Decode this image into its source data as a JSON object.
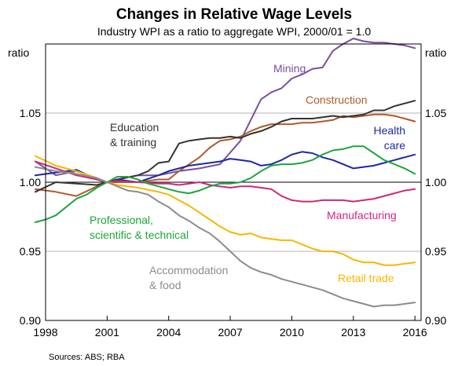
{
  "chart_data": {
    "type": "line",
    "title": "Changes in Relative Wage Levels",
    "subtitle": "Industry WPI as a ratio to aggregate WPI, 2000/01 = 1.0",
    "left_unit": "ratio",
    "right_unit": "ratio",
    "source": "Sources:   ABS; RBA",
    "grid": "horizontal",
    "xlim": [
      1998,
      2016.3
    ],
    "ylim": [
      0.9,
      1.1
    ],
    "x_ticks": [
      "1998",
      "2001",
      "2004",
      "2007",
      "2010",
      "2013",
      "2016"
    ],
    "x_tick_values": [
      1998,
      2001,
      2004,
      2007,
      2010,
      2013,
      2016
    ],
    "y_ticks": [
      "0.90",
      "0.95",
      "1.00",
      "1.05"
    ],
    "y_tick_values": [
      0.9,
      0.95,
      1.0,
      1.05
    ],
    "series": [
      {
        "name": "Mining",
        "color": "#7b4f9d",
        "x": [
          1997.5,
          1998.5,
          1999.5,
          2000.5,
          2001,
          2001.5,
          2002.5,
          2003.5,
          2004.5,
          2005.5,
          2006.5,
          2007.5,
          2008,
          2008.5,
          2009,
          2009.5,
          2010,
          2010.5,
          2011,
          2011.5,
          2012,
          2012.5,
          2013,
          2013.5,
          2014,
          2014.5,
          2015,
          2015.5,
          2016
        ],
        "y": [
          1.015,
          1.005,
          1.008,
          1.003,
          1.0,
          1.002,
          1.005,
          1.005,
          1.008,
          1.01,
          1.013,
          1.03,
          1.045,
          1.06,
          1.065,
          1.068,
          1.075,
          1.078,
          1.082,
          1.083,
          1.095,
          1.1,
          1.104,
          1.102,
          1.101,
          1.101,
          1.1,
          1.099,
          1.097
        ]
      },
      {
        "name": "Construction",
        "color": "#b15a2a",
        "x": [
          1997.5,
          1998.5,
          1999.5,
          2000.5,
          2001,
          2001.5,
          2002.5,
          2003.5,
          2004,
          2004.5,
          2005,
          2005.5,
          2006,
          2006.5,
          2007,
          2007.5,
          2008,
          2008.5,
          2009,
          2009.5,
          2010,
          2010.5,
          2011,
          2011.5,
          2012,
          2012.5,
          2013,
          2013.5,
          2014,
          2014.5,
          2015,
          2015.5,
          2016
        ],
        "y": [
          0.995,
          0.993,
          0.99,
          0.997,
          1.0,
          1.0,
          1.0,
          1.002,
          1.002,
          1.008,
          1.013,
          1.018,
          1.025,
          1.03,
          1.031,
          1.033,
          1.037,
          1.04,
          1.042,
          1.042,
          1.042,
          1.043,
          1.043,
          1.044,
          1.045,
          1.048,
          1.047,
          1.048,
          1.049,
          1.049,
          1.048,
          1.046,
          1.044
        ]
      },
      {
        "name": "Education & training",
        "color": "#333333",
        "x": [
          1997.5,
          1998.5,
          1999.5,
          2000.5,
          2001,
          2001.5,
          2002.5,
          2003,
          2003.5,
          2004,
          2004.5,
          2005,
          2005.5,
          2006,
          2006.5,
          2007,
          2007.5,
          2008,
          2008.5,
          2009,
          2009.5,
          2010,
          2010.5,
          2011,
          2011.5,
          2012,
          2012.5,
          2013,
          2013.5,
          2014,
          2014.5,
          2015,
          2015.5,
          2016
        ],
        "y": [
          0.993,
          1.0,
          0.999,
          0.998,
          1.0,
          1.002,
          1.005,
          1.008,
          1.014,
          1.015,
          1.028,
          1.03,
          1.031,
          1.032,
          1.032,
          1.033,
          1.032,
          1.035,
          1.037,
          1.04,
          1.044,
          1.046,
          1.046,
          1.046,
          1.047,
          1.048,
          1.047,
          1.048,
          1.049,
          1.052,
          1.052,
          1.055,
          1.057,
          1.059
        ]
      },
      {
        "name": "Health care",
        "color": "#1c2aa3",
        "x": [
          1997.5,
          1998.5,
          1999.5,
          2000.5,
          2001,
          2001.5,
          2002.5,
          2003.5,
          2004,
          2004.5,
          2005,
          2005.5,
          2006,
          2006.5,
          2007,
          2007.5,
          2008,
          2008.5,
          2009,
          2009.5,
          2010,
          2010.5,
          2011,
          2011.5,
          2012,
          2012.5,
          2013,
          2013.5,
          2014,
          2014.5,
          2015,
          2015.5,
          2016
        ],
        "y": [
          1.005,
          1.007,
          1.009,
          1.002,
          1.0,
          1.002,
          1.0,
          1.005,
          1.008,
          1.01,
          1.012,
          1.013,
          1.014,
          1.015,
          1.017,
          1.016,
          1.015,
          1.012,
          1.013,
          1.016,
          1.02,
          1.022,
          1.021,
          1.018,
          1.016,
          1.013,
          1.01,
          1.011,
          1.012,
          1.014,
          1.016,
          1.018,
          1.02
        ]
      },
      {
        "name": "Manufacturing",
        "color": "#d0277e",
        "x": [
          1997.5,
          1998.5,
          1999.5,
          2000.5,
          2001,
          2001.5,
          2002.5,
          2003.5,
          2004,
          2004.5,
          2005,
          2005.5,
          2006,
          2006.5,
          2007,
          2007.5,
          2008,
          2008.5,
          2009,
          2009.5,
          2010,
          2010.5,
          2011,
          2011.5,
          2012,
          2012.5,
          2013,
          2013.5,
          2014,
          2014.5,
          2015,
          2015.5,
          2016
        ],
        "y": [
          1.015,
          1.01,
          1.005,
          1.002,
          1.0,
          1.001,
          1.0,
          0.999,
          0.999,
          0.998,
          0.999,
          1.0,
          0.998,
          0.997,
          0.996,
          0.997,
          0.997,
          0.996,
          0.995,
          0.99,
          0.987,
          0.986,
          0.986,
          0.987,
          0.987,
          0.987,
          0.986,
          0.987,
          0.988,
          0.99,
          0.992,
          0.994,
          0.995
        ]
      },
      {
        "name": "Professional, scientific & technical",
        "color": "#1ba63b",
        "x": [
          1997.5,
          1998,
          1998.5,
          1999,
          1999.5,
          2000,
          2000.5,
          2001,
          2001.5,
          2002,
          2002.5,
          2003,
          2003.5,
          2004,
          2004.5,
          2005,
          2005.5,
          2006,
          2006.5,
          2007,
          2007.5,
          2008,
          2008.5,
          2009,
          2009.5,
          2010,
          2010.5,
          2011,
          2011.5,
          2012,
          2012.5,
          2013,
          2013.5,
          2014,
          2014.5,
          2015,
          2015.5,
          2016
        ],
        "y": [
          0.971,
          0.973,
          0.976,
          0.982,
          0.988,
          0.991,
          0.996,
          1.0,
          1.004,
          1.004,
          1.002,
          0.999,
          0.997,
          0.995,
          0.993,
          0.992,
          0.994,
          0.997,
          0.999,
          0.999,
          1.0,
          1.003,
          1.008,
          1.012,
          1.013,
          1.013,
          1.014,
          1.016,
          1.02,
          1.023,
          1.024,
          1.026,
          1.026,
          1.021,
          1.016,
          1.013,
          1.01,
          1.006
        ]
      },
      {
        "name": "Retail trade",
        "color": "#f5b800",
        "x": [
          1997.5,
          1998.5,
          1999.5,
          2000.5,
          2001,
          2001.5,
          2002.5,
          2003.5,
          2004,
          2004.5,
          2005,
          2005.5,
          2006,
          2006.5,
          2007,
          2007.5,
          2008,
          2008.5,
          2009,
          2009.5,
          2010,
          2010.5,
          2011,
          2011.5,
          2012,
          2012.5,
          2013,
          2013.5,
          2014,
          2014.5,
          2015,
          2015.5,
          2016
        ],
        "y": [
          1.019,
          1.012,
          1.008,
          1.003,
          1.0,
          0.998,
          0.996,
          0.993,
          0.991,
          0.987,
          0.983,
          0.978,
          0.973,
          0.968,
          0.964,
          0.962,
          0.963,
          0.96,
          0.959,
          0.958,
          0.958,
          0.955,
          0.952,
          0.95,
          0.95,
          0.948,
          0.944,
          0.942,
          0.942,
          0.94,
          0.94,
          0.941,
          0.942
        ]
      },
      {
        "name": "Accommodation & food",
        "color": "#8c8c8c",
        "x": [
          1997.5,
          1998.5,
          1999.5,
          2000.5,
          2001,
          2001.5,
          2002,
          2002.5,
          2003,
          2003.5,
          2004,
          2004.5,
          2005,
          2005.5,
          2006,
          2006.5,
          2007,
          2007.5,
          2008,
          2008.5,
          2009,
          2009.5,
          2010,
          2010.5,
          2011,
          2011.5,
          2012,
          2012.5,
          2013,
          2013.5,
          2014,
          2014.5,
          2015,
          2015.5,
          2016
        ],
        "y": [
          1.011,
          1.008,
          1.006,
          1.003,
          1.0,
          0.997,
          0.994,
          0.993,
          0.991,
          0.986,
          0.982,
          0.976,
          0.972,
          0.967,
          0.963,
          0.957,
          0.95,
          0.943,
          0.938,
          0.935,
          0.933,
          0.93,
          0.928,
          0.926,
          0.924,
          0.922,
          0.919,
          0.916,
          0.914,
          0.912,
          0.91,
          0.911,
          0.911,
          0.912,
          0.913
        ]
      }
    ],
    "series_labels": [
      {
        "series": "Mining",
        "lines": [
          "Mining"
        ]
      },
      {
        "series": "Construction",
        "lines": [
          "Construction"
        ]
      },
      {
        "series": "Education & training",
        "lines": [
          "Education",
          "& training"
        ]
      },
      {
        "series": "Health care",
        "lines": [
          "Health",
          "care"
        ]
      },
      {
        "series": "Manufacturing",
        "lines": [
          "Manufacturing"
        ]
      },
      {
        "series": "Professional, scientific & technical",
        "lines": [
          "Professional,",
          "scientific & technical"
        ]
      },
      {
        "series": "Retail trade",
        "lines": [
          "Retail trade"
        ]
      },
      {
        "series": "Accommodation & food",
        "lines": [
          "Accommodation",
          "& food"
        ]
      }
    ]
  }
}
